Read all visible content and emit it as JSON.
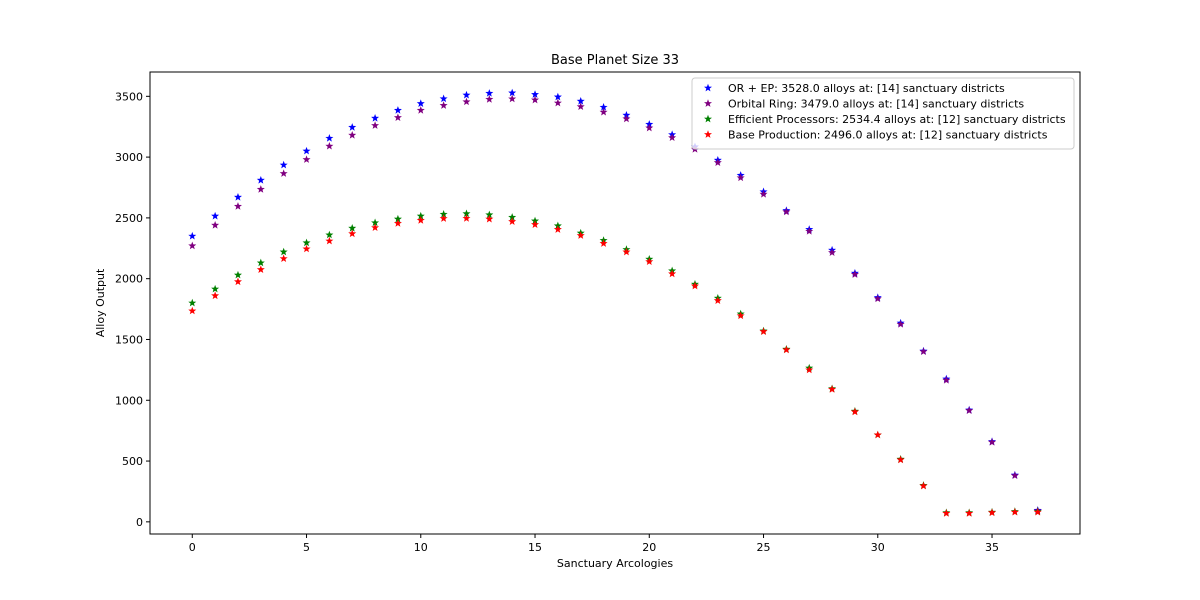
{
  "chart_data": {
    "type": "scatter",
    "title": "Base Planet Size 33",
    "xlabel": "Sanctuary Arcologies",
    "ylabel": "Alloy Output",
    "xlim": [
      -1.85,
      38.85
    ],
    "ylim": [
      -100,
      3700
    ],
    "xticks": [
      0,
      5,
      10,
      15,
      20,
      25,
      30,
      35
    ],
    "yticks": [
      0,
      500,
      1000,
      1500,
      2000,
      2500,
      3000,
      3500
    ],
    "grid": false,
    "legend_position": "top-right",
    "marker": "star",
    "series": [
      {
        "name": "OR + EP: 3528.0 alloys at: [14] sanctuary districts",
        "color": "#0000ff",
        "x": [
          0,
          1,
          2,
          3,
          4,
          5,
          6,
          7,
          8,
          9,
          10,
          11,
          12,
          13,
          14,
          15,
          16,
          17,
          18,
          19,
          20,
          21,
          22,
          23,
          24,
          25,
          26,
          27,
          28,
          29,
          30,
          31,
          32,
          33,
          34,
          35,
          36,
          37
        ],
        "y": [
          2350,
          2515,
          2670,
          2810,
          2935,
          3050,
          3155,
          3245,
          3320,
          3385,
          3440,
          3480,
          3510,
          3525,
          3528,
          3515,
          3495,
          3460,
          3410,
          3345,
          3270,
          3185,
          3085,
          2975,
          2850,
          2715,
          2560,
          2405,
          2235,
          2045,
          1845,
          1635,
          1405,
          1175,
          920,
          660,
          385,
          95
        ]
      },
      {
        "name": "Orbital Ring: 3479.0 alloys at: [14] sanctuary districts",
        "color": "#800080",
        "x": [
          0,
          1,
          2,
          3,
          4,
          5,
          6,
          7,
          8,
          9,
          10,
          11,
          12,
          13,
          14,
          15,
          16,
          17,
          18,
          19,
          20,
          21,
          22,
          23,
          24,
          25,
          26,
          27,
          28,
          29,
          30,
          31,
          32,
          33,
          34,
          35,
          36,
          37
        ],
        "y": [
          2270,
          2440,
          2595,
          2735,
          2865,
          2980,
          3090,
          3180,
          3260,
          3325,
          3385,
          3425,
          3455,
          3475,
          3479,
          3470,
          3445,
          3415,
          3370,
          3315,
          3240,
          3160,
          3065,
          2955,
          2830,
          2695,
          2550,
          2390,
          2215,
          2035,
          1835,
          1625,
          1400,
          1165,
          915,
          655,
          380,
          90
        ]
      },
      {
        "name": "Efficient Processors: 2534.4 alloys at: [12] sanctuary districts",
        "color": "#008000",
        "x": [
          0,
          1,
          2,
          3,
          4,
          5,
          6,
          7,
          8,
          9,
          10,
          11,
          12,
          13,
          14,
          15,
          16,
          17,
          18,
          19,
          20,
          21,
          22,
          23,
          24,
          25,
          26,
          27,
          28,
          29,
          30,
          31,
          32,
          33,
          34,
          35,
          36,
          37
        ],
        "y": [
          1800,
          1915,
          2030,
          2130,
          2220,
          2295,
          2360,
          2415,
          2460,
          2490,
          2515,
          2530,
          2534.4,
          2525,
          2505,
          2475,
          2435,
          2375,
          2315,
          2240,
          2160,
          2065,
          1955,
          1840,
          1710,
          1570,
          1420,
          1265,
          1095,
          910,
          715,
          515,
          300,
          75,
          75,
          80,
          85,
          85
        ]
      },
      {
        "name": "Base Production: 2496.0 alloys at: [12] sanctuary districts",
        "color": "#ff0000",
        "x": [
          0,
          1,
          2,
          3,
          4,
          5,
          6,
          7,
          8,
          9,
          10,
          11,
          12,
          13,
          14,
          15,
          16,
          17,
          18,
          19,
          20,
          21,
          22,
          23,
          24,
          25,
          26,
          27,
          28,
          29,
          30,
          31,
          32,
          33,
          34,
          35,
          36,
          37
        ],
        "y": [
          1735,
          1860,
          1975,
          2075,
          2165,
          2245,
          2310,
          2370,
          2420,
          2455,
          2480,
          2495,
          2496,
          2490,
          2470,
          2445,
          2405,
          2355,
          2290,
          2220,
          2140,
          2040,
          1940,
          1820,
          1695,
          1565,
          1415,
          1250,
          1090,
          905,
          715,
          510,
          295,
          70,
          70,
          75,
          80,
          80
        ]
      }
    ]
  }
}
